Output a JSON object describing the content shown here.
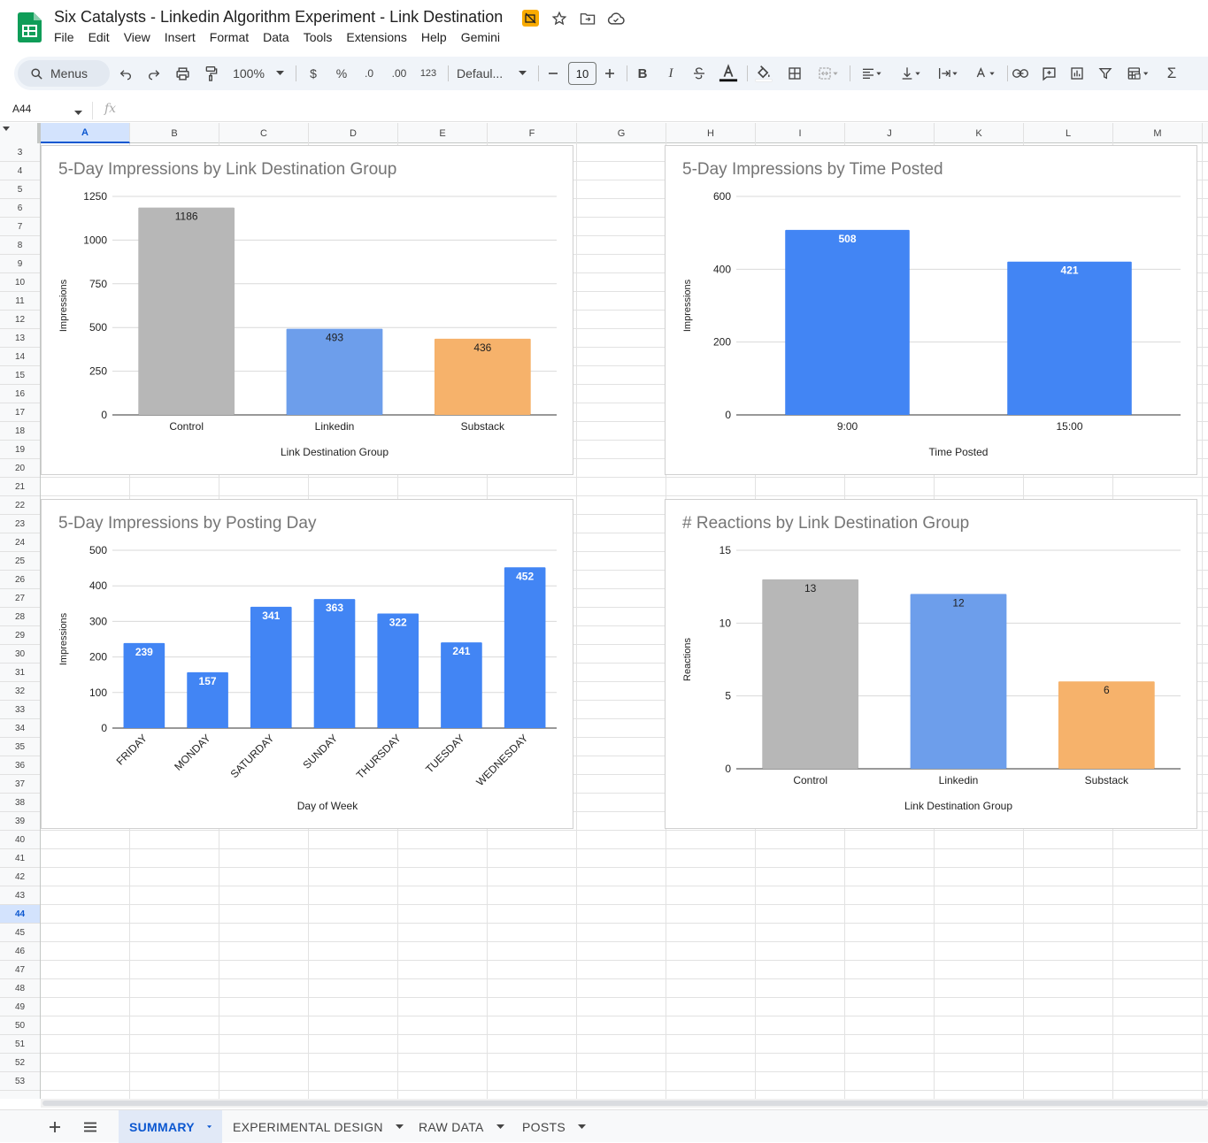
{
  "app": {
    "title": "Six Catalysts - Linkedin Algorithm Experiment - Link Destination"
  },
  "menu": [
    "File",
    "Edit",
    "View",
    "Insert",
    "Format",
    "Data",
    "Tools",
    "Extensions",
    "Help",
    "Gemini"
  ],
  "toolbar": {
    "search_label": "Menus",
    "zoom": "100%",
    "currency": "$",
    "percent": "%",
    "decrease_decimal": ".0",
    "increase_decimal": ".00",
    "number_format": "123",
    "font": "Defaul...",
    "font_size": "10",
    "bold": "B",
    "italic": "I",
    "sum": "Σ"
  },
  "formula_bar": {
    "name_box": "A44",
    "fx": "fx"
  },
  "columns": [
    "A",
    "B",
    "C",
    "D",
    "E",
    "F",
    "G",
    "H",
    "I",
    "J",
    "K",
    "L",
    "M"
  ],
  "rows": [
    "3",
    "4",
    "5",
    "6",
    "7",
    "8",
    "9",
    "10",
    "11",
    "12",
    "13",
    "14",
    "15",
    "16",
    "17",
    "18",
    "19",
    "20",
    "21",
    "22",
    "23",
    "24",
    "25",
    "26",
    "27",
    "28",
    "29",
    "30",
    "31",
    "32",
    "33",
    "34",
    "35",
    "36",
    "37",
    "38",
    "39",
    "40",
    "41",
    "42",
    "43",
    "44",
    "45",
    "46",
    "47",
    "48",
    "49",
    "50",
    "51",
    "52",
    "53"
  ],
  "selected_cell": "A44",
  "colors": {
    "gray_bar": "#b7b7b7",
    "linkedin_bar": "#6d9eeb",
    "substack_bar": "#f6b26b",
    "blue_bar": "#4285f4",
    "accent": "#0b57d0"
  },
  "chart_data": [
    {
      "type": "bar",
      "title": "5-Day Impressions by Link Destination Group",
      "categories": [
        "Control",
        "Linkedin",
        "Substack"
      ],
      "values": [
        1186,
        493,
        436
      ],
      "labels": [
        "1186",
        "493",
        "436"
      ],
      "bar_colors": [
        "#b7b7b7",
        "#6d9eeb",
        "#f6b26b"
      ],
      "label_color": "#1f1f1f",
      "xlabel": "Link Destination Group",
      "ylabel": "Impressions",
      "ylim": [
        0,
        1250
      ],
      "yticks": [
        "0",
        "250",
        "500",
        "750",
        "1000",
        "1250"
      ],
      "grid": true
    },
    {
      "type": "bar",
      "title": "5-Day Impressions by Time Posted",
      "categories": [
        "9:00",
        "15:00"
      ],
      "values": [
        508,
        421
      ],
      "labels": [
        "508",
        "421"
      ],
      "bar_colors": [
        "#4285f4",
        "#4285f4"
      ],
      "label_color": "#ffffff",
      "xlabel": "Time Posted",
      "ylabel": "Impressions",
      "ylim": [
        0,
        600
      ],
      "yticks": [
        "0",
        "200",
        "400",
        "600"
      ],
      "grid": true
    },
    {
      "type": "bar",
      "title": "5-Day Impressions by Posting Day",
      "categories": [
        "FRIDAY",
        "MONDAY",
        "SATURDAY",
        "SUNDAY",
        "THURSDAY",
        "TUESDAY",
        "WEDNESDAY"
      ],
      "values": [
        239,
        157,
        341,
        363,
        322,
        241,
        452
      ],
      "labels": [
        "239",
        "157",
        "341",
        "363",
        "322",
        "241",
        "452"
      ],
      "bar_colors": [
        "#4285f4",
        "#4285f4",
        "#4285f4",
        "#4285f4",
        "#4285f4",
        "#4285f4",
        "#4285f4"
      ],
      "label_color": "#ffffff",
      "xlabel": "Day of Week",
      "ylabel": "Impressions",
      "ylim": [
        0,
        500
      ],
      "yticks": [
        "0",
        "100",
        "200",
        "300",
        "400",
        "500"
      ],
      "rotated_categories": true,
      "grid": true
    },
    {
      "type": "bar",
      "title": "# Reactions by Link Destination Group",
      "categories": [
        "Control",
        "Linkedin",
        "Substack"
      ],
      "values": [
        13,
        12,
        6
      ],
      "labels": [
        "13",
        "12",
        "6"
      ],
      "bar_colors": [
        "#b7b7b7",
        "#6d9eeb",
        "#f6b26b"
      ],
      "label_color": "#1f1f1f",
      "xlabel": "Link Destination Group",
      "ylabel": "Reactions",
      "ylim": [
        0,
        15
      ],
      "yticks": [
        "0",
        "5",
        "10",
        "15"
      ],
      "grid": true
    }
  ],
  "sheets": [
    {
      "label": "SUMMARY",
      "active": true
    },
    {
      "label": "EXPERIMENTAL DESIGN",
      "active": false
    },
    {
      "label": "RAW DATA",
      "active": false
    },
    {
      "label": "POSTS",
      "active": false
    }
  ]
}
